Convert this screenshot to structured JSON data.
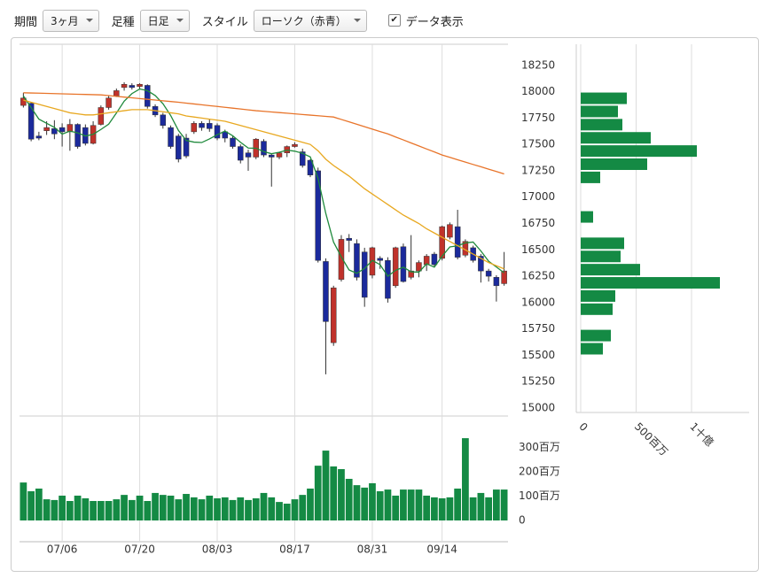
{
  "toolbar": {
    "period_label": "期間",
    "period_value": "3ヶ月",
    "bar_label": "足種",
    "bar_value": "日足",
    "style_label": "スタイル",
    "style_value": "ローソク（赤青）",
    "show_data_label": "データ表示",
    "show_data_checked": true
  },
  "chart_data": [
    {
      "type": "candlestick",
      "categories": [
        null,
        null,
        null,
        null,
        null,
        "07/06",
        null,
        null,
        null,
        null,
        null,
        null,
        null,
        null,
        null,
        "07/20",
        null,
        null,
        null,
        null,
        null,
        null,
        null,
        null,
        null,
        "08/03",
        null,
        null,
        null,
        null,
        null,
        null,
        null,
        null,
        null,
        "08/17",
        null,
        null,
        null,
        null,
        null,
        null,
        null,
        null,
        null,
        "08/31",
        null,
        null,
        null,
        null,
        null,
        null,
        null,
        null,
        "09/14",
        null,
        null,
        null,
        null,
        null,
        null,
        null,
        null
      ],
      "open": [
        17870,
        17890,
        17580,
        17630,
        17650,
        17660,
        17620,
        17690,
        17660,
        17510,
        17690,
        17850,
        17960,
        18040,
        18060,
        18050,
        18060,
        17860,
        17780,
        17660,
        17580,
        17560,
        17620,
        17700,
        17700,
        17680,
        17620,
        17560,
        17480,
        17420,
        17380,
        17530,
        17400,
        17380,
        17420,
        17480,
        17430,
        17350,
        17250,
        16390,
        15620,
        16220,
        16610,
        16560,
        16480,
        16260,
        16420,
        16400,
        16160,
        16530,
        16240,
        16300,
        16360,
        16460,
        16420,
        16620,
        16720,
        16450,
        16520,
        16440,
        16300,
        16240,
        16180
      ],
      "high": [
        17990,
        17900,
        17620,
        17720,
        17730,
        17700,
        17740,
        17700,
        17690,
        17720,
        17870,
        17960,
        18030,
        18090,
        18080,
        18080,
        18070,
        17880,
        17800,
        17680,
        17600,
        17600,
        17720,
        17720,
        17740,
        17700,
        17640,
        17580,
        17500,
        17450,
        17560,
        17550,
        17410,
        17430,
        17490,
        17520,
        17460,
        17360,
        17280,
        16420,
        16160,
        16640,
        16650,
        16600,
        16520,
        16530,
        16440,
        16430,
        16530,
        16560,
        16640,
        16400,
        16460,
        16480,
        16730,
        16760,
        16880,
        16600,
        16540,
        16460,
        16320,
        16260,
        16480
      ],
      "low": [
        17850,
        17530,
        17540,
        17590,
        17550,
        17480,
        17440,
        17460,
        17490,
        17500,
        17680,
        17830,
        17950,
        18010,
        18020,
        18030,
        17840,
        17760,
        17650,
        17460,
        17330,
        17370,
        17600,
        17630,
        17620,
        17540,
        17520,
        17460,
        17320,
        17250,
        17360,
        17380,
        17100,
        17360,
        17380,
        17470,
        17280,
        17190,
        16380,
        15320,
        15590,
        16200,
        16480,
        16210,
        15960,
        16230,
        16320,
        16000,
        16140,
        16190,
        16220,
        16240,
        16300,
        16340,
        16400,
        16600,
        16410,
        16430,
        16380,
        16190,
        16200,
        16010,
        16160
      ],
      "close": [
        17940,
        17550,
        17560,
        17660,
        17600,
        17620,
        17690,
        17480,
        17510,
        17680,
        17850,
        17940,
        18010,
        18070,
        18040,
        18070,
        17860,
        17780,
        17680,
        17480,
        17360,
        17390,
        17700,
        17660,
        17650,
        17560,
        17560,
        17480,
        17350,
        17380,
        17550,
        17400,
        17380,
        17420,
        17480,
        17500,
        17300,
        17210,
        16400,
        15820,
        16140,
        16600,
        16590,
        16240,
        16050,
        16520,
        16400,
        16040,
        16520,
        16200,
        16300,
        16380,
        16440,
        16360,
        16720,
        16740,
        16430,
        16580,
        16400,
        16300,
        16250,
        16160,
        16300
      ],
      "up_color": "#c0322b",
      "down_color": "#1b2a9c",
      "series": [
        {
          "color": "#1f8a3c",
          "values": [
            17960,
            17850,
            17740,
            17700,
            17662,
            17598,
            17626,
            17610,
            17580,
            17596,
            17642,
            17692,
            17798,
            17910,
            17982,
            18026,
            18010,
            17964,
            17886,
            17774,
            17632,
            17538,
            17522,
            17518,
            17552,
            17592,
            17626,
            17582,
            17520,
            17466,
            17464,
            17432,
            17412,
            17426,
            17446,
            17436,
            17416,
            17382,
            17178,
            16846,
            16574,
            16434,
            16310,
            16278,
            16324,
            16400,
            16360,
            16250,
            16306,
            16336,
            16292,
            16288,
            16368,
            16336,
            16440,
            16528,
            16538,
            16566,
            16574,
            16490,
            16392,
            16338,
            16282
          ]
        },
        {
          "color": "#e8a820",
          "values": [
            17920,
            17900,
            17880,
            17860,
            17840,
            17820,
            17800,
            17790,
            17780,
            17780,
            17790,
            17800,
            17810,
            17820,
            17830,
            17830,
            17830,
            17820,
            17810,
            17800,
            17790,
            17770,
            17760,
            17750,
            17740,
            17730,
            17720,
            17700,
            17680,
            17660,
            17640,
            17620,
            17600,
            17580,
            17560,
            17540,
            17520,
            17500,
            17440,
            17360,
            17300,
            17250,
            17200,
            17140,
            17080,
            17030,
            16980,
            16930,
            16880,
            16830,
            16790,
            16750,
            16700,
            16660,
            16620,
            16580,
            16540,
            16500,
            16460,
            16420,
            16380,
            16350,
            16320
          ]
        },
        {
          "color": "#e8742a",
          "values": [
            17990,
            17988,
            17986,
            17984,
            17982,
            17980,
            17978,
            17976,
            17974,
            17972,
            17970,
            17963,
            17956,
            17949,
            17942,
            17935,
            17928,
            17921,
            17914,
            17907,
            17900,
            17892,
            17884,
            17876,
            17868,
            17860,
            17852,
            17844,
            17836,
            17828,
            17820,
            17814,
            17808,
            17802,
            17796,
            17790,
            17784,
            17778,
            17772,
            17766,
            17760,
            17737,
            17714,
            17691,
            17668,
            17645,
            17622,
            17600,
            17571,
            17543,
            17514,
            17486,
            17457,
            17429,
            17400,
            17378,
            17355,
            17333,
            17310,
            17288,
            17265,
            17243,
            17220
          ]
        }
      ],
      "ylim": [
        15000,
        18450
      ],
      "yticks": [
        15000,
        15250,
        15500,
        15750,
        16000,
        16250,
        16500,
        16750,
        17000,
        17250,
        17500,
        17750,
        18000,
        18250
      ],
      "grid": "x"
    },
    {
      "type": "bar",
      "color": "#148a44",
      "values": [
        156,
        120,
        131,
        87,
        84,
        102,
        80,
        102,
        91,
        80,
        80,
        80,
        87,
        105,
        84,
        102,
        80,
        113,
        105,
        102,
        87,
        109,
        95,
        87,
        102,
        91,
        95,
        84,
        95,
        84,
        91,
        113,
        95,
        76,
        69,
        87,
        105,
        131,
        225,
        287,
        222,
        211,
        171,
        145,
        135,
        153,
        120,
        127,
        102,
        127,
        127,
        127,
        102,
        95,
        91,
        95,
        131,
        338,
        95,
        113,
        95,
        127,
        127
      ],
      "ylim": [
        0,
        400
      ],
      "yticks": [
        0,
        {
          "value": 100,
          "label": "100百万"
        },
        {
          "value": 200,
          "label": "200百万"
        },
        {
          "value": 300,
          "label": "300百万"
        }
      ],
      "grid": "x"
    },
    {
      "type": "hbar",
      "color": "#148a44",
      "y": [
        17937.5,
        17812.5,
        17687.5,
        17562.5,
        17437.5,
        17312.5,
        17187.5,
        16812.5,
        16562.5,
        16437.5,
        16312.5,
        16187.5,
        16062.5,
        15937.5,
        15687.5,
        15562.5
      ],
      "values": [
        416,
        336,
        376,
        632,
        1048,
        600,
        176,
        112,
        392,
        360,
        536,
        1256,
        312,
        288,
        272,
        200
      ],
      "ylim": [
        15000,
        18450
      ],
      "xlim": [
        0,
        1480
      ],
      "xticks": [
        0,
        {
          "value": 500,
          "label": "500百万"
        },
        {
          "value": 1000,
          "label": "1十億"
        }
      ],
      "grid": "x"
    }
  ]
}
